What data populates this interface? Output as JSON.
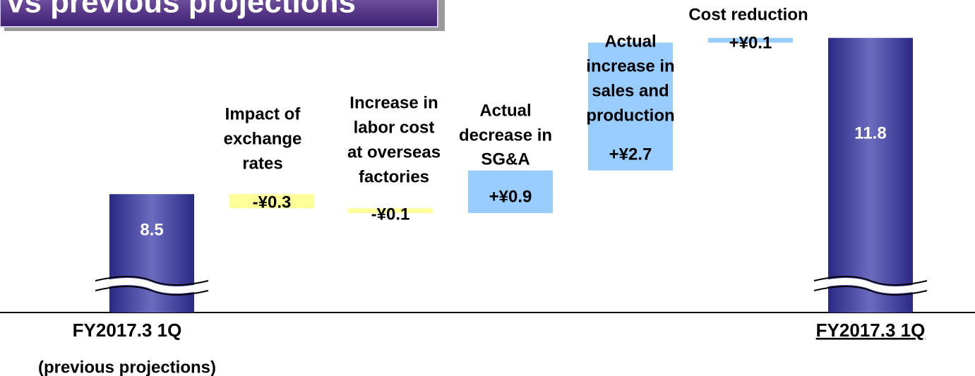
{
  "chart_data": {
    "type": "waterfall",
    "title": "vs previous projections",
    "categories": [
      [
        "FY2017.3 1Q",
        "(previous projections)"
      ],
      [
        "Impact of",
        "exchange",
        "rates"
      ],
      [
        "Increase in",
        "labor cost",
        "at overseas",
        "factories"
      ],
      [
        "Actual",
        "decrease in",
        "SG&A"
      ],
      [
        "Actual",
        "increase in",
        "sales and",
        "production"
      ],
      [
        "Cost reduction"
      ],
      [
        "FY2017.3 1Q"
      ]
    ],
    "values": [
      8.5,
      -0.3,
      -0.1,
      0.9,
      2.7,
      0.1,
      11.8
    ],
    "value_labels": [
      "8.5",
      "-¥0.3",
      "-¥0.1",
      "+¥0.9",
      "+¥2.7",
      "+¥0.1",
      "11.8"
    ],
    "totals": [
      0,
      6
    ],
    "colors": {
      "total": "#2e3192",
      "increase": "#99ccff",
      "decrease": "#ffff99"
    },
    "ylim": [
      6,
      12.6
    ]
  }
}
